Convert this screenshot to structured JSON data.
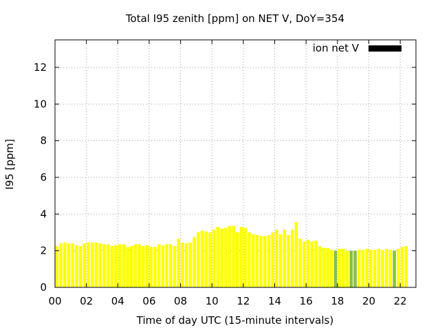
{
  "chart_data": {
    "type": "bar",
    "title": "Total I95 zenith [ppm] on NET V, DoY=354",
    "xlabel": "Time of day UTC (15-minute intervals)",
    "ylabel": "I95 [ppm]",
    "xlim": [
      0,
      23
    ],
    "ylim": [
      0,
      13.5
    ],
    "x_ticks": [
      0,
      2,
      4,
      6,
      8,
      10,
      12,
      14,
      16,
      18,
      20,
      22
    ],
    "x_tick_labels": [
      "00",
      "02",
      "04",
      "06",
      "08",
      "10",
      "12",
      "14",
      "16",
      "18",
      "20",
      "22"
    ],
    "y_ticks": [
      0,
      2,
      4,
      6,
      8,
      10,
      12
    ],
    "y_tick_labels": [
      "0",
      "2",
      "4",
      "6",
      "8",
      "10",
      "12"
    ],
    "grid": true,
    "legend": {
      "position": "top-right",
      "entries": [
        {
          "name": "ion net V",
          "color": "#000000"
        }
      ]
    },
    "bar_width_hours": 0.2,
    "colors": {
      "normal": "#ffff00",
      "flagged": "#88c040",
      "grid": "#a0a0a0",
      "axis": "#000000"
    },
    "bars": [
      {
        "x": 0.125,
        "v": 2.25
      },
      {
        "x": 0.375,
        "v": 2.4
      },
      {
        "x": 0.625,
        "v": 2.45
      },
      {
        "x": 0.875,
        "v": 2.4
      },
      {
        "x": 1.125,
        "v": 2.4
      },
      {
        "x": 1.375,
        "v": 2.3
      },
      {
        "x": 1.625,
        "v": 2.25
      },
      {
        "x": 1.875,
        "v": 2.4
      },
      {
        "x": 2.125,
        "v": 2.45
      },
      {
        "x": 2.375,
        "v": 2.45
      },
      {
        "x": 2.625,
        "v": 2.45
      },
      {
        "x": 2.875,
        "v": 2.4
      },
      {
        "x": 3.125,
        "v": 2.35
      },
      {
        "x": 3.375,
        "v": 2.35
      },
      {
        "x": 3.625,
        "v": 2.25
      },
      {
        "x": 3.875,
        "v": 2.3
      },
      {
        "x": 4.125,
        "v": 2.35
      },
      {
        "x": 4.375,
        "v": 2.35
      },
      {
        "x": 4.625,
        "v": 2.2
      },
      {
        "x": 4.875,
        "v": 2.25
      },
      {
        "x": 5.125,
        "v": 2.35
      },
      {
        "x": 5.375,
        "v": 2.35
      },
      {
        "x": 5.625,
        "v": 2.25
      },
      {
        "x": 5.875,
        "v": 2.3
      },
      {
        "x": 6.125,
        "v": 2.2
      },
      {
        "x": 6.375,
        "v": 2.2
      },
      {
        "x": 6.625,
        "v": 2.35
      },
      {
        "x": 6.875,
        "v": 2.3
      },
      {
        "x": 7.125,
        "v": 2.35
      },
      {
        "x": 7.375,
        "v": 2.35
      },
      {
        "x": 7.625,
        "v": 2.25
      },
      {
        "x": 7.875,
        "v": 2.65
      },
      {
        "x": 8.125,
        "v": 2.45
      },
      {
        "x": 8.375,
        "v": 2.4
      },
      {
        "x": 8.625,
        "v": 2.45
      },
      {
        "x": 8.875,
        "v": 2.75
      },
      {
        "x": 9.125,
        "v": 3.0
      },
      {
        "x": 9.375,
        "v": 3.1
      },
      {
        "x": 9.625,
        "v": 3.05
      },
      {
        "x": 9.875,
        "v": 3.0
      },
      {
        "x": 10.125,
        "v": 3.15
      },
      {
        "x": 10.375,
        "v": 3.3
      },
      {
        "x": 10.625,
        "v": 3.2
      },
      {
        "x": 10.875,
        "v": 3.25
      },
      {
        "x": 11.125,
        "v": 3.35
      },
      {
        "x": 11.375,
        "v": 3.35
      },
      {
        "x": 11.625,
        "v": 3.0
      },
      {
        "x": 11.875,
        "v": 3.3
      },
      {
        "x": 12.125,
        "v": 3.25
      },
      {
        "x": 12.375,
        "v": 3.0
      },
      {
        "x": 12.625,
        "v": 2.9
      },
      {
        "x": 12.875,
        "v": 2.85
      },
      {
        "x": 13.125,
        "v": 2.8
      },
      {
        "x": 13.375,
        "v": 2.8
      },
      {
        "x": 13.625,
        "v": 2.85
      },
      {
        "x": 13.875,
        "v": 3.0
      },
      {
        "x": 14.125,
        "v": 3.15
      },
      {
        "x": 14.375,
        "v": 2.9
      },
      {
        "x": 14.625,
        "v": 3.15
      },
      {
        "x": 14.875,
        "v": 2.85
      },
      {
        "x": 15.125,
        "v": 3.15
      },
      {
        "x": 15.375,
        "v": 3.55
      },
      {
        "x": 15.625,
        "v": 2.65
      },
      {
        "x": 15.875,
        "v": 2.5
      },
      {
        "x": 16.125,
        "v": 2.6
      },
      {
        "x": 16.375,
        "v": 2.5
      },
      {
        "x": 16.625,
        "v": 2.55
      },
      {
        "x": 16.875,
        "v": 2.25
      },
      {
        "x": 17.125,
        "v": 2.15
      },
      {
        "x": 17.375,
        "v": 2.15
      },
      {
        "x": 17.625,
        "v": 2.05
      },
      {
        "x": 17.875,
        "v": 2.0,
        "flag": true
      },
      {
        "x": 18.125,
        "v": 2.1
      },
      {
        "x": 18.375,
        "v": 2.1
      },
      {
        "x": 18.625,
        "v": 2.0
      },
      {
        "x": 18.875,
        "v": 2.0,
        "flag": true
      },
      {
        "x": 19.125,
        "v": 2.0,
        "flag": true
      },
      {
        "x": 19.375,
        "v": 2.05
      },
      {
        "x": 19.625,
        "v": 2.05
      },
      {
        "x": 19.875,
        "v": 2.1
      },
      {
        "x": 20.125,
        "v": 2.05
      },
      {
        "x": 20.375,
        "v": 2.05
      },
      {
        "x": 20.625,
        "v": 2.1
      },
      {
        "x": 20.875,
        "v": 2.05
      },
      {
        "x": 21.125,
        "v": 2.1
      },
      {
        "x": 21.375,
        "v": 2.05
      },
      {
        "x": 21.625,
        "v": 2.0,
        "flag": true
      },
      {
        "x": 21.875,
        "v": 2.1
      },
      {
        "x": 22.125,
        "v": 2.2
      },
      {
        "x": 22.375,
        "v": 2.25
      }
    ]
  }
}
